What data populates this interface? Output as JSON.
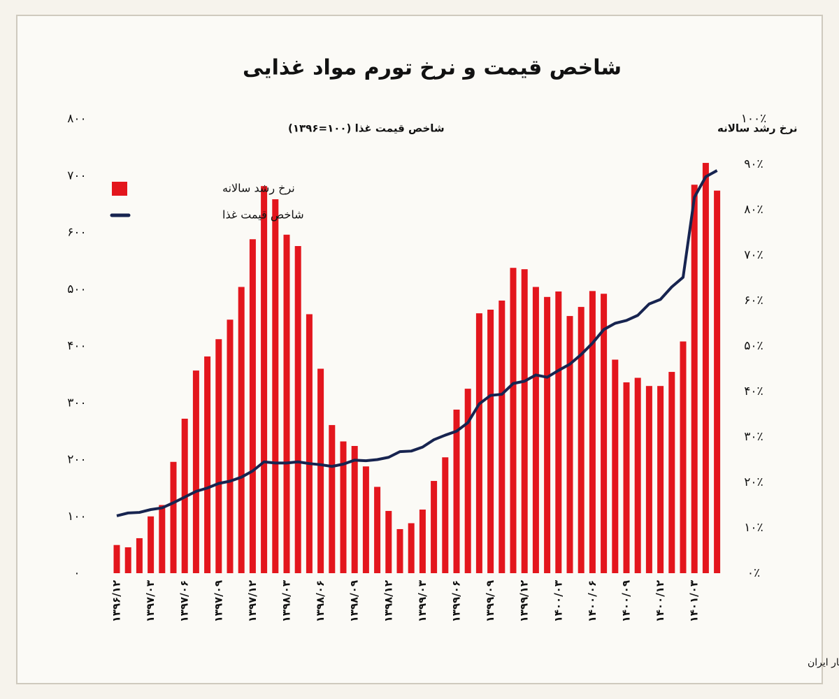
{
  "chart_data": {
    "type": "bar-line",
    "title": "شاخص قیمت و نرخ تورم مواد غذایی",
    "y_label": "شاخص قیمت غذا (۱۰۰=۱۳۹۶)",
    "y2_label": "نرخ رشد سالانه",
    "source": "تحلیل و استنتاج: احسان سلطانی بر اساس داده های مرکز آمار ایران",
    "categories": [
      "۱۳۹۶/۱۲",
      null,
      null,
      "۱۳۹۷/۰۳",
      null,
      null,
      "۱۳۹۷/۰۶",
      null,
      null,
      "۱۳۹۷/۰۹",
      null,
      null,
      "۱۳۹۷/۱۲",
      null,
      null,
      "۱۳۹۸/۰۳",
      null,
      null,
      "۱۳۹۸/۰۶",
      null,
      null,
      "۱۳۹۸/۰۹",
      null,
      null,
      "۱۳۹۸/۱۲",
      null,
      null,
      "۱۳۹۹/۰۳",
      null,
      null,
      "۱۳۹۹/۰۶",
      null,
      null,
      "۱۳۹۹/۰۹",
      null,
      null,
      "۱۳۹۹/۱۲",
      null,
      null,
      "۱۴۰۰/۰۳",
      null,
      null,
      "۱۴۰۰/۰۶",
      null,
      null,
      "۱۴۰۰/۰۹",
      null,
      null,
      "۱۴۰۰/۱۲",
      null,
      null,
      "۱۴۰۱/۰۳",
      null,
      null
    ],
    "series": [
      {
        "name": "نرخ رشد سالانه",
        "color": "#e3161d",
        "kind": "bar",
        "axis": "y2",
        "values": [
          6.2,
          5.7,
          7.7,
          12.5,
          15,
          24.5,
          34,
          44.6,
          47.7,
          51.5,
          55.8,
          63,
          73.5,
          85.2,
          82.3,
          74.5,
          72,
          57,
          45,
          32.6,
          29,
          28,
          23.5,
          19,
          13.7,
          9.7,
          11,
          14,
          20.3,
          25.5,
          36,
          40.6,
          57.2,
          58,
          60,
          67.2,
          66.9,
          63,
          60.8,
          62,
          56.6,
          58.6,
          62.1,
          61.5,
          47,
          42,
          43,
          41.2,
          41.2,
          44.3,
          51,
          85.5,
          90.3,
          84.2
        ]
      },
      {
        "name": "شاخص قیمت غذا",
        "color": "#172450",
        "kind": "line",
        "axis": "y",
        "values": [
          101,
          106,
          107,
          112,
          115,
          124,
          134,
          144,
          150,
          158,
          162,
          169,
          180,
          196,
          194,
          194,
          196,
          193,
          191,
          188,
          192,
          199,
          198,
          200,
          204,
          214,
          215,
          222,
          235,
          243,
          250,
          265,
          298,
          313,
          315,
          334,
          338,
          349,
          345,
          357,
          368,
          385,
          405,
          429,
          440,
          445,
          454,
          474,
          482,
          504,
          521,
          662,
          698,
          709
        ]
      }
    ],
    "ylim": [
      0,
      800
    ],
    "yticks": [
      {
        "value": 0,
        "label": "۰"
      },
      {
        "value": 100,
        "label": "۱۰۰"
      },
      {
        "value": 200,
        "label": "۲۰۰"
      },
      {
        "value": 300,
        "label": "۳۰۰"
      },
      {
        "value": 400,
        "label": "۴۰۰"
      },
      {
        "value": 500,
        "label": "۵۰۰"
      },
      {
        "value": 600,
        "label": "۶۰۰"
      },
      {
        "value": 700,
        "label": "۷۰۰"
      },
      {
        "value": 800,
        "label": "۸۰۰"
      }
    ],
    "y2lim": [
      0,
      100
    ],
    "y2ticks": [
      {
        "value": 0,
        "label": "۰٪"
      },
      {
        "value": 10,
        "label": "۱۰٪"
      },
      {
        "value": 20,
        "label": "۲۰٪"
      },
      {
        "value": 30,
        "label": "۳۰٪"
      },
      {
        "value": 40,
        "label": "۴۰٪"
      },
      {
        "value": 50,
        "label": "۵۰٪"
      },
      {
        "value": 60,
        "label": "۶۰٪"
      },
      {
        "value": 70,
        "label": "۷۰٪"
      },
      {
        "value": 80,
        "label": "۸۰٪"
      },
      {
        "value": 90,
        "label": "۹۰٪"
      },
      {
        "value": 100,
        "label": "۱۰۰٪"
      }
    ],
    "grid": false,
    "legend": "upper left"
  }
}
